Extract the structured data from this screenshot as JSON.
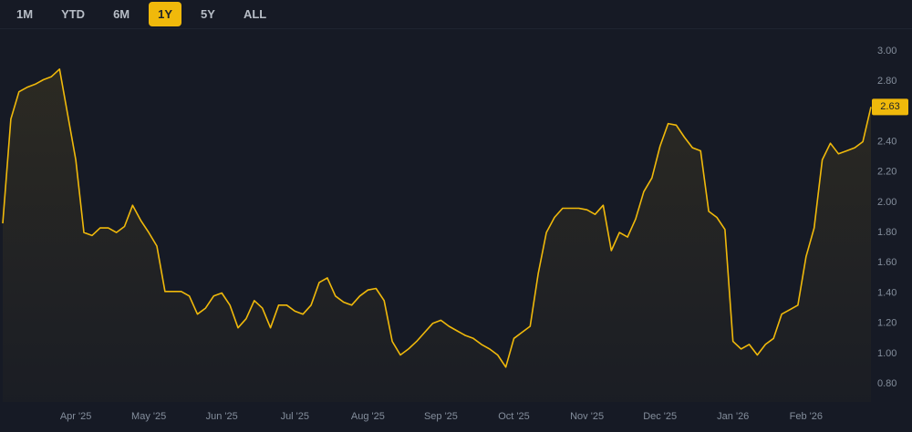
{
  "range_buttons": {
    "options": [
      "1M",
      "YTD",
      "6M",
      "1Y",
      "5Y",
      "ALL"
    ],
    "active_index": 3
  },
  "chart_data": {
    "type": "area",
    "categories": [
      null,
      null,
      null,
      null,
      null,
      null,
      null,
      null,
      null,
      "Apr '25",
      null,
      null,
      null,
      null,
      null,
      null,
      null,
      null,
      "May '25",
      null,
      null,
      null,
      null,
      null,
      null,
      null,
      null,
      "Jun '25",
      null,
      null,
      null,
      null,
      null,
      null,
      null,
      null,
      "Jul '25",
      null,
      null,
      null,
      null,
      null,
      null,
      null,
      null,
      "Aug '25",
      null,
      null,
      null,
      null,
      null,
      null,
      null,
      null,
      "Sep '25",
      null,
      null,
      null,
      null,
      null,
      null,
      null,
      null,
      "Oct '25",
      null,
      null,
      null,
      null,
      null,
      null,
      null,
      null,
      "Nov '25",
      null,
      null,
      null,
      null,
      null,
      null,
      null,
      null,
      "Dec '25",
      null,
      null,
      null,
      null,
      null,
      null,
      null,
      null,
      "Jan '26",
      null,
      null,
      null,
      null,
      null,
      null,
      null,
      null,
      "Feb '26",
      null,
      null,
      null,
      null,
      null,
      null,
      null,
      null
    ],
    "series": [
      {
        "color": "#f0b90b",
        "values": [
          1.86,
          2.55,
          2.73,
          2.76,
          2.78,
          2.81,
          2.83,
          2.88,
          2.58,
          2.28,
          1.8,
          1.78,
          1.83,
          1.83,
          1.8,
          1.84,
          1.98,
          1.88,
          1.8,
          1.71,
          1.41,
          1.41,
          1.41,
          1.38,
          1.26,
          1.3,
          1.38,
          1.4,
          1.32,
          1.17,
          1.23,
          1.35,
          1.3,
          1.17,
          1.32,
          1.32,
          1.28,
          1.26,
          1.32,
          1.47,
          1.5,
          1.38,
          1.34,
          1.32,
          1.38,
          1.42,
          1.43,
          1.35,
          1.08,
          0.99,
          1.03,
          1.08,
          1.14,
          1.2,
          1.22,
          1.18,
          1.15,
          1.12,
          1.1,
          1.06,
          1.03,
          0.99,
          0.91,
          1.1,
          1.14,
          1.18,
          1.53,
          1.8,
          1.9,
          1.96,
          1.96,
          1.96,
          1.95,
          1.92,
          1.98,
          1.68,
          1.8,
          1.77,
          1.89,
          2.07,
          2.16,
          2.37,
          2.52,
          2.51,
          2.43,
          2.36,
          2.34,
          1.94,
          1.9,
          1.82,
          1.08,
          1.03,
          1.06,
          0.99,
          1.06,
          1.1,
          1.26,
          1.29,
          1.32,
          1.64,
          1.83,
          2.28,
          2.39,
          2.32,
          2.34,
          2.36,
          2.4,
          2.63
        ]
      }
    ],
    "ylim": [
      0.68,
      3.12
    ],
    "yticks": [
      {
        "value": 0.8,
        "label": "0.80"
      },
      {
        "value": 1,
        "label": "1.00"
      },
      {
        "value": 1.2,
        "label": "1.20"
      },
      {
        "value": 1.4,
        "label": "1.40"
      },
      {
        "value": 1.6,
        "label": "1.60"
      },
      {
        "value": 1.8,
        "label": "1.80"
      },
      {
        "value": 2,
        "label": "2.00"
      },
      {
        "value": 2.2,
        "label": "2.20"
      },
      {
        "value": 2.4,
        "label": "2.40"
      },
      {
        "value": 2.6,
        "label": "2.60"
      },
      {
        "value": 2.8,
        "label": "2.80"
      },
      {
        "value": 3,
        "label": "3.00"
      }
    ],
    "last_value": {
      "value": 2.63,
      "label": "2.63"
    },
    "axis_side": "right",
    "grid": false
  }
}
